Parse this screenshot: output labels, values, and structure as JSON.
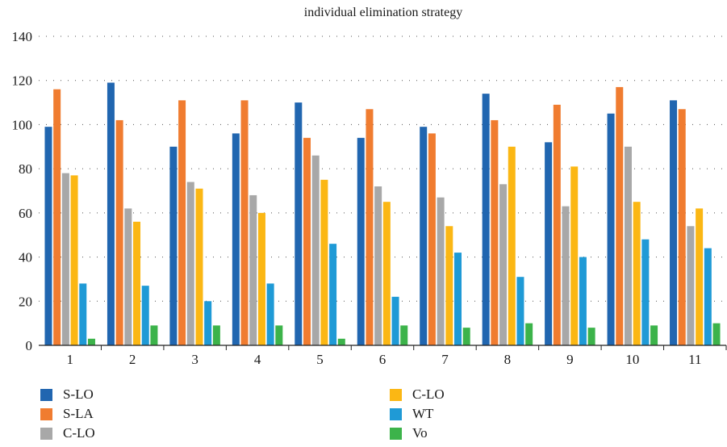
{
  "chart_data": {
    "type": "bar",
    "title": "individual elimination strategy",
    "xlabel": "",
    "ylabel": "",
    "ylim": [
      0,
      140
    ],
    "yticks": [
      0,
      20,
      40,
      60,
      80,
      100,
      120,
      140
    ],
    "grid": "horizontal dotted",
    "legend_position": "bottom",
    "categories": [
      "1",
      "2",
      "3",
      "4",
      "5",
      "6",
      "7",
      "8",
      "9",
      "10",
      "11"
    ],
    "series": [
      {
        "name": "S-LO",
        "color": "#2166b0",
        "values": [
          99,
          119,
          90,
          96,
          110,
          94,
          99,
          114,
          92,
          105,
          111
        ]
      },
      {
        "name": "S-LA",
        "color": "#f07c30",
        "values": [
          116,
          102,
          111,
          111,
          94,
          107,
          96,
          102,
          109,
          117,
          107
        ]
      },
      {
        "name": "C-LO",
        "color": "#a8a8a8",
        "values": [
          78,
          62,
          74,
          68,
          86,
          72,
          67,
          73,
          63,
          90,
          54
        ]
      },
      {
        "name": "C-LO",
        "color": "#fbb714",
        "values": [
          77,
          56,
          71,
          60,
          75,
          65,
          54,
          90,
          81,
          65,
          62
        ]
      },
      {
        "name": "WT",
        "color": "#1f9ad6",
        "values": [
          28,
          27,
          20,
          28,
          46,
          22,
          42,
          31,
          40,
          48,
          44
        ]
      },
      {
        "name": "Vo",
        "color": "#3cb34a",
        "values": [
          3,
          9,
          9,
          9,
          3,
          9,
          8,
          10,
          8,
          9,
          10
        ]
      }
    ]
  }
}
